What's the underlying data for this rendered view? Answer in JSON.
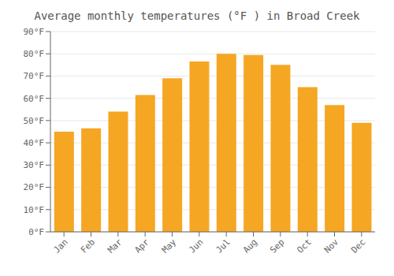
{
  "chart_data": {
    "type": "bar",
    "title": "Average monthly temperatures (°F ) in Broad Creek",
    "categories": [
      "Jan",
      "Feb",
      "Mar",
      "Apr",
      "May",
      "Jun",
      "Jul",
      "Aug",
      "Sep",
      "Oct",
      "Nov",
      "Dec"
    ],
    "values": [
      45,
      46.5,
      54,
      61.5,
      69,
      76.5,
      80,
      79.5,
      75,
      65,
      57,
      49
    ],
    "color": "#F5A623",
    "ylim": [
      0,
      90
    ],
    "yticks": [
      {
        "value": 0,
        "label": "0°F"
      },
      {
        "value": 10,
        "label": "10°F"
      },
      {
        "value": 20,
        "label": "20°F"
      },
      {
        "value": 30,
        "label": "30°F"
      },
      {
        "value": 40,
        "label": "40°F"
      },
      {
        "value": 50,
        "label": "50°F"
      },
      {
        "value": 60,
        "label": "60°F"
      },
      {
        "value": 70,
        "label": "70°F"
      },
      {
        "value": 80,
        "label": "80°F"
      },
      {
        "value": 90,
        "label": "90°F"
      }
    ],
    "grid": true
  }
}
